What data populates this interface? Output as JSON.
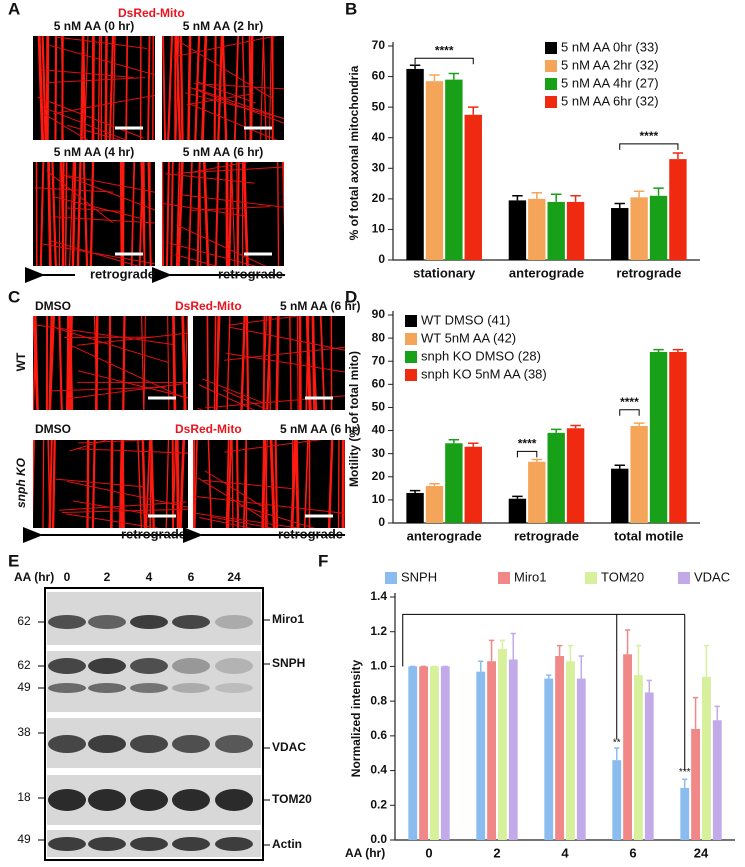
{
  "panels": {
    "letters": [
      "A",
      "B",
      "C",
      "D",
      "E",
      "F"
    ],
    "a": {
      "stain": "DsRed-Mito",
      "titles": [
        "5 nM AA (0 hr)",
        "5 nM AA (2 hr)",
        "5 nM AA (4 hr)",
        "5 nM AA (6 hr)"
      ],
      "arrows": [
        "retrograde",
        "retrograde"
      ]
    },
    "c": {
      "top": [
        "DMSO",
        "DsRed-Mito",
        "5 nM AA (6 hr)"
      ],
      "bottom": [
        "DMSO",
        "DsRed-Mito",
        "5 nM AA (6 hr)"
      ],
      "rows": [
        "WT",
        "snph KO"
      ],
      "arrows": [
        "retrograde",
        "retrograde"
      ]
    },
    "e": {
      "axis": "AA (hr)",
      "lanes": [
        "0",
        "2",
        "4",
        "6",
        "24"
      ],
      "markers": [
        "62",
        "62",
        "49",
        "38",
        "18",
        "49"
      ],
      "proteins": [
        "Miro1",
        "SNPH",
        "VDAC",
        "TOM20",
        "Actin"
      ]
    }
  },
  "chart_data": [
    {
      "type": "bar",
      "y_label": "% of total axonal mitochondria",
      "categories": [
        "stationary",
        "anterograde",
        "retrograde"
      ],
      "series": [
        {
          "name": "5 nM AA 0hr (33)",
          "color": "#000000",
          "values": [
            62.5,
            19.5,
            17
          ],
          "errors": [
            1.2,
            1.5,
            1.5
          ]
        },
        {
          "name": "5 nM AA 2hr (32)",
          "color": "#f5a55a",
          "values": [
            58.5,
            20,
            20.5
          ],
          "errors": [
            2,
            2,
            2
          ]
        },
        {
          "name": "5 nM AA 4hr (27)",
          "color": "#18a018",
          "values": [
            59,
            19,
            21
          ],
          "errors": [
            2,
            2.5,
            2.5
          ]
        },
        {
          "name": "5 nM AA 6hr (32)",
          "color": "#f02a10",
          "values": [
            47.5,
            19,
            33
          ],
          "errors": [
            2.5,
            2,
            2
          ]
        }
      ],
      "annotations": [
        "****",
        "****"
      ],
      "ylim": [
        0,
        70
      ],
      "yticks": [
        0,
        10,
        20,
        30,
        40,
        50,
        60,
        70
      ]
    },
    {
      "type": "bar",
      "y_label": "Motility (% of total mito)",
      "categories": [
        "anterograde",
        "retrograde",
        "total motile"
      ],
      "series": [
        {
          "name": "WT DMSO (41)",
          "color": "#000000",
          "values": [
            13,
            10.5,
            23.5
          ],
          "errors": [
            1,
            1,
            1.5
          ]
        },
        {
          "name": "WT 5nM AA (42)",
          "color": "#f5a55a",
          "values": [
            16,
            26.5,
            42
          ],
          "errors": [
            1,
            1,
            1.2
          ]
        },
        {
          "name": "snph KO DMSO (28)",
          "color": "#18a018",
          "values": [
            34.5,
            39,
            74
          ],
          "errors": [
            1.5,
            1.5,
            1
          ]
        },
        {
          "name": "snph KO 5nM AA (38)",
          "color": "#f02a10",
          "values": [
            33,
            41,
            74
          ],
          "errors": [
            1.5,
            1.2,
            1
          ]
        }
      ],
      "annotations": [
        "****",
        "****"
      ],
      "ylim": [
        0,
        90
      ],
      "yticks": [
        0,
        10,
        20,
        30,
        40,
        50,
        60,
        70,
        80,
        90
      ]
    },
    {
      "type": "bar",
      "y_label": "Normalized intensity",
      "x_label": "AA (hr)",
      "categories": [
        "0",
        "2",
        "4",
        "6",
        "24"
      ],
      "series": [
        {
          "name": "SNPH",
          "color": "#8abcf0",
          "values": [
            1.0,
            0.97,
            0.93,
            0.46,
            0.3
          ],
          "errors": [
            0,
            0.06,
            0.02,
            0.07,
            0.05
          ]
        },
        {
          "name": "Miro1",
          "color": "#f08888",
          "values": [
            1.0,
            1.03,
            1.06,
            1.07,
            0.64
          ],
          "errors": [
            0,
            0.12,
            0.06,
            0.14,
            0.18
          ]
        },
        {
          "name": "TOM20",
          "color": "#d6f09c",
          "values": [
            1.0,
            1.1,
            1.03,
            0.95,
            0.94
          ],
          "errors": [
            0,
            0.05,
            0.09,
            0.17,
            0.18
          ]
        },
        {
          "name": "VDAC",
          "color": "#c2aae8",
          "values": [
            1.0,
            1.04,
            0.93,
            0.85,
            0.69
          ],
          "errors": [
            0,
            0.15,
            0.13,
            0.07,
            0.08
          ]
        }
      ],
      "annotations": [
        "**",
        "***"
      ],
      "ylim": [
        0,
        1.4
      ],
      "yticks": [
        {
          "value": 0,
          "label": "0.0"
        },
        0.2,
        0.4,
        0.6,
        0.8,
        {
          "value": 1,
          "label": "1.0"
        },
        1.2,
        1.4
      ]
    }
  ]
}
